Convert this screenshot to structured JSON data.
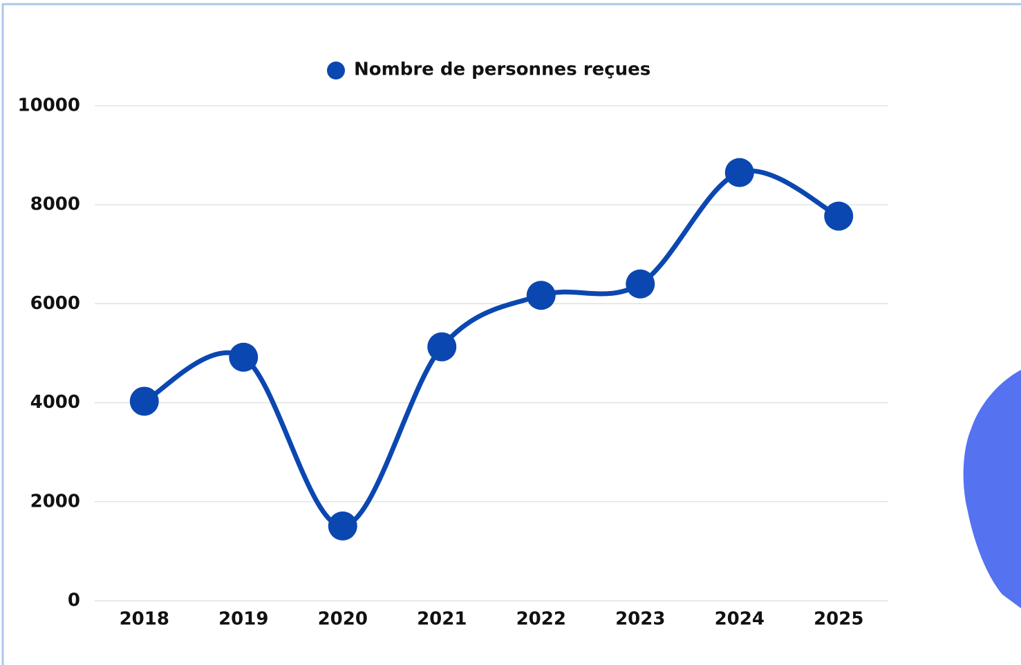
{
  "chart_data": {
    "type": "line",
    "categories": [
      "2018",
      "2019",
      "2020",
      "2021",
      "2022",
      "2023",
      "2024",
      "2025"
    ],
    "series": [
      {
        "name": "Nombre de personnes reçues",
        "color": "#0b47b0",
        "values": [
          4030,
          4920,
          1510,
          5130,
          6170,
          6400,
          8650,
          7770
        ]
      }
    ],
    "ylim": [
      0,
      10000
    ],
    "yticks": [
      0,
      2000,
      4000,
      6000,
      8000,
      10000
    ],
    "grid": true,
    "legend": "top"
  }
}
